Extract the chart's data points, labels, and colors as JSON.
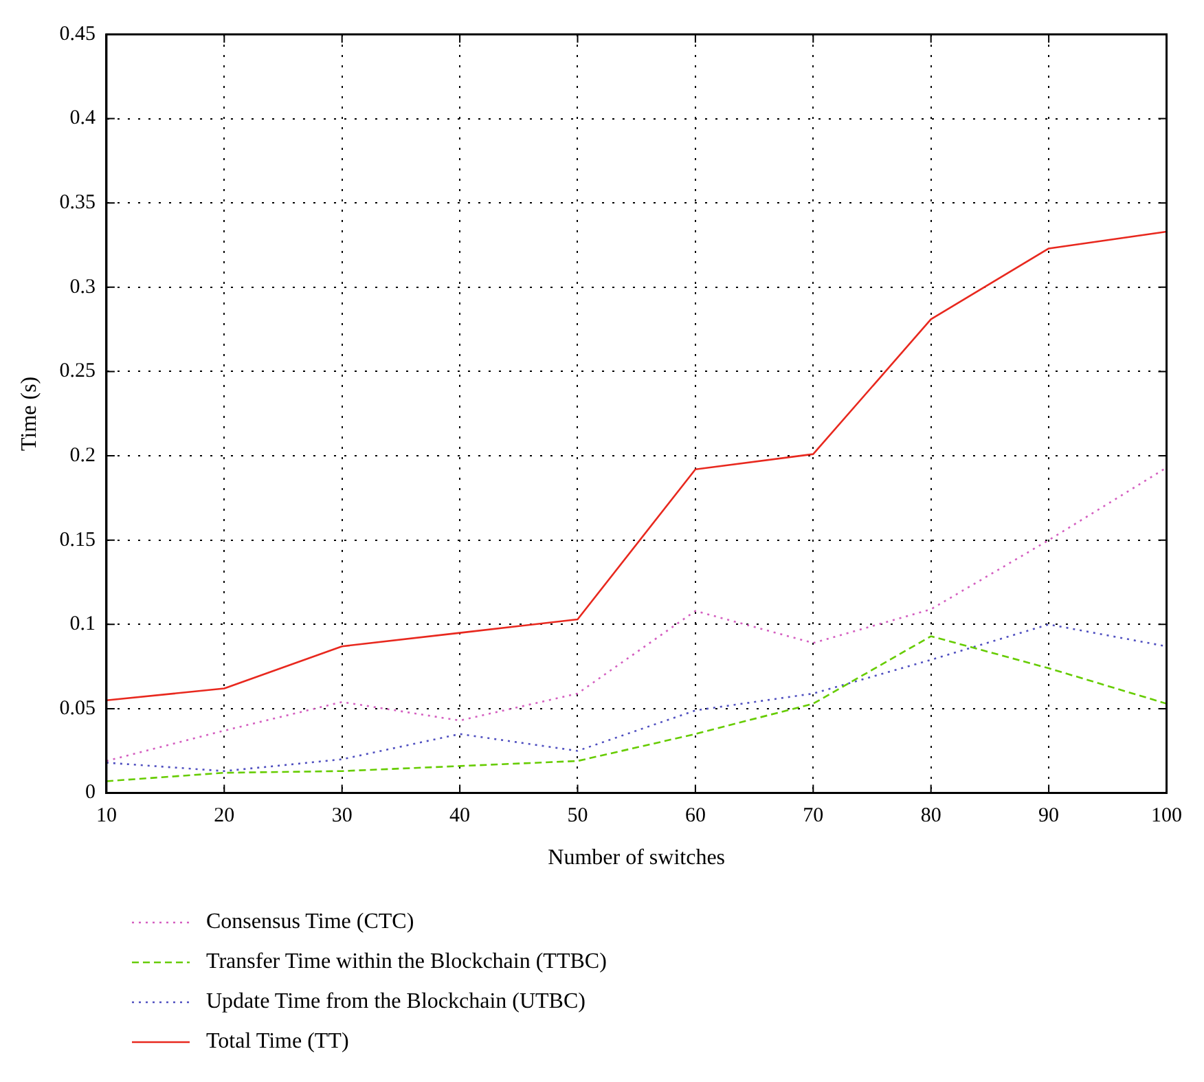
{
  "chart_data": {
    "type": "line",
    "xlabel": "Number of switches",
    "ylabel": "Time (s)",
    "x": [
      10,
      20,
      30,
      40,
      50,
      60,
      70,
      80,
      90,
      100
    ],
    "xlim": [
      10,
      100
    ],
    "xticks": [
      10,
      20,
      30,
      40,
      50,
      60,
      70,
      80,
      90,
      100
    ],
    "ylim": [
      0,
      0.45
    ],
    "yticks": [
      0,
      0.05,
      0.1,
      0.15,
      0.2,
      0.25,
      0.3,
      0.35,
      0.4,
      0.45
    ],
    "grid": true,
    "legend": "bottom",
    "series": [
      {
        "name": "Consensus Time (CTC)",
        "color": "#d45fc0",
        "line_style": "dotted",
        "values": [
          0.019,
          0.037,
          0.054,
          0.043,
          0.059,
          0.108,
          0.089,
          0.109,
          0.15,
          0.193
        ]
      },
      {
        "name": "Transfer Time within the Blockchain (TTBC)",
        "color": "#66cc00",
        "line_style": "dashed",
        "values": [
          0.007,
          0.012,
          0.013,
          0.016,
          0.019,
          0.035,
          0.053,
          0.093,
          0.074,
          0.053
        ]
      },
      {
        "name": "Update Time from the Blockchain (UTBC)",
        "color": "#5050c0",
        "line_style": "dotted",
        "values": [
          0.018,
          0.013,
          0.02,
          0.035,
          0.025,
          0.049,
          0.059,
          0.079,
          0.1,
          0.087
        ]
      },
      {
        "name": "Total Time (TT)",
        "color": "#e8281e",
        "line_style": "solid",
        "values": [
          0.055,
          0.062,
          0.087,
          0.095,
          0.103,
          0.192,
          0.201,
          0.281,
          0.323,
          0.333
        ]
      }
    ]
  }
}
